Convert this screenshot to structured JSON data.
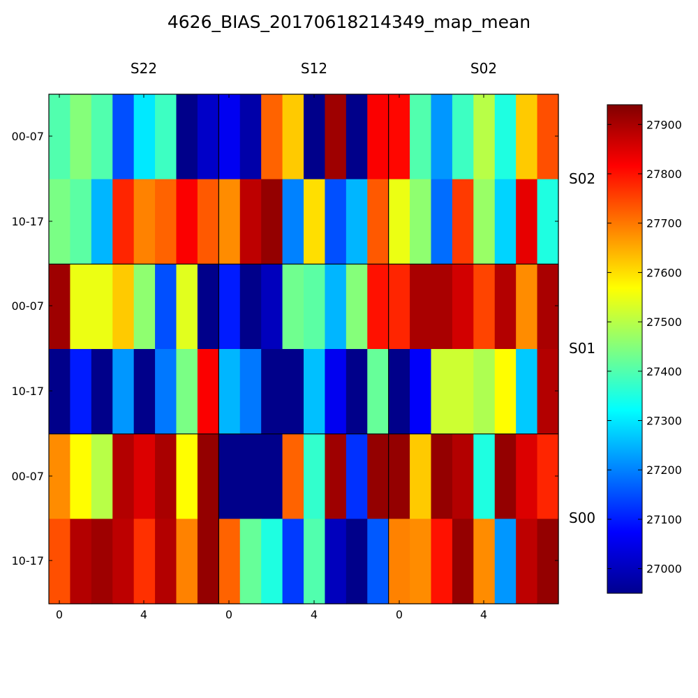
{
  "chart_data": {
    "type": "heatmap",
    "title": "4626_BIAS_20170618214349_map_mean",
    "column_groups": [
      "S22",
      "S12",
      "S02"
    ],
    "row_groups": [
      "S02",
      "S01",
      "S00"
    ],
    "row_labels": [
      "00-07",
      "10-17",
      "00-07",
      "10-17",
      "00-07",
      "10-17"
    ],
    "x_tick_labels": [
      "0",
      "4",
      "0",
      "4",
      "0",
      "4"
    ],
    "colormap": "jet",
    "vmin": 26950,
    "vmax": 27940,
    "colorbar_ticks": [
      27000,
      27100,
      27200,
      27300,
      27400,
      27500,
      27600,
      27700,
      27800,
      27900
    ],
    "grid": false,
    "values": [
      [
        27400,
        27450,
        27400,
        27150,
        27300,
        27380,
        26960,
        27020,
        27060,
        26990,
        27720,
        27620,
        26960,
        27910,
        26960,
        27820,
        27810,
        27400,
        27220,
        27380,
        27500,
        27350,
        27620,
        27740
      ],
      [
        27440,
        27410,
        27250,
        27780,
        27690,
        27720,
        27820,
        27730,
        27680,
        27880,
        27920,
        27200,
        27600,
        27150,
        27250,
        27730,
        27550,
        27460,
        27180,
        27760,
        27470,
        27280,
        27840,
        27350
      ],
      [
        27910,
        27550,
        27550,
        27620,
        27460,
        27150,
        27540,
        26960,
        27100,
        26960,
        27010,
        27430,
        27410,
        27250,
        27450,
        27800,
        27780,
        27900,
        27900,
        27860,
        27750,
        27890,
        27680,
        27900
      ],
      [
        26960,
        27100,
        26960,
        27220,
        26960,
        27190,
        27440,
        27820,
        27250,
        27190,
        26960,
        26960,
        27260,
        27060,
        26960,
        27420,
        26960,
        27070,
        27520,
        27520,
        27490,
        27570,
        27270,
        27890
      ],
      [
        27680,
        27570,
        27500,
        27890,
        27850,
        27900,
        27570,
        27920,
        26960,
        26960,
        26960,
        27720,
        27370,
        27910,
        27120,
        27920,
        27920,
        27620,
        27920,
        27890,
        27350,
        27920,
        27850,
        27780
      ],
      [
        27740,
        27890,
        27910,
        27880,
        27770,
        27890,
        27690,
        27920,
        27720,
        27420,
        27350,
        27130,
        27400,
        27010,
        26960,
        27160,
        27690,
        27680,
        27800,
        27920,
        27680,
        27220,
        27880,
        27920
      ]
    ]
  }
}
